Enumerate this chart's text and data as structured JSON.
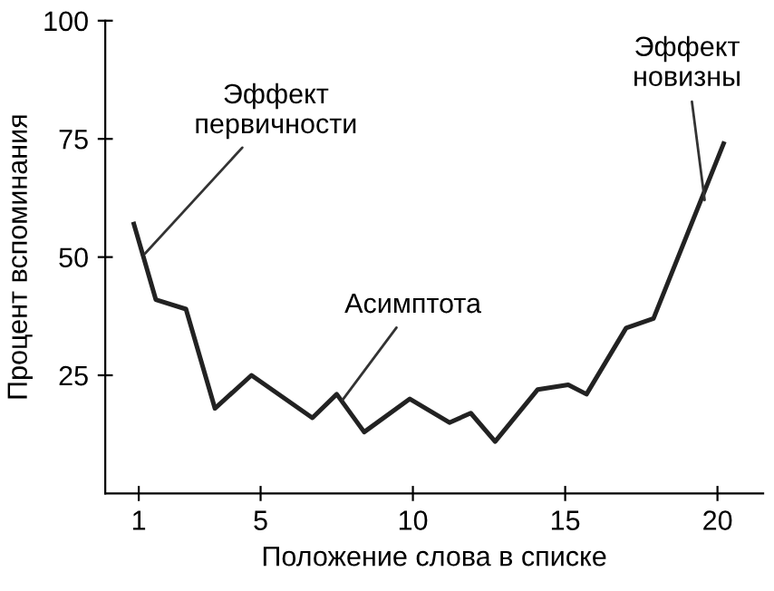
{
  "chart_data": {
    "type": "line",
    "xlabel": "Положение слова в списке",
    "ylabel": "Процент вспоминания",
    "x": [
      0.84,
      1.56,
      2.55,
      3.5,
      4.7,
      6.7,
      7.5,
      8.4,
      9.9,
      11.2,
      11.9,
      12.7,
      14.1,
      15.1,
      15.7,
      17.0,
      17.9,
      20.2
    ],
    "series": [
      {
        "color": "#222222",
        "values": [
          57,
          41,
          39,
          18,
          25,
          16,
          21,
          13,
          20,
          15,
          17,
          11,
          22,
          23,
          21,
          35,
          37,
          74
        ]
      }
    ],
    "xlim": [
      -0.1,
      21.5
    ],
    "ylim": [
      0,
      100
    ],
    "xticks": [
      1,
      5,
      10,
      15,
      20
    ],
    "yticks": [
      25,
      50,
      75,
      100
    ],
    "grid": false,
    "marker": "none",
    "line_style": "solid",
    "annotations": [
      {
        "text": "Эффект\nпервичности",
        "x": 1.1,
        "y": 50
      },
      {
        "text": "Асимптота",
        "x": 7.6,
        "y": 19
      },
      {
        "text": "Эффект\nновизны",
        "x": 19.6,
        "y": 61
      }
    ]
  }
}
